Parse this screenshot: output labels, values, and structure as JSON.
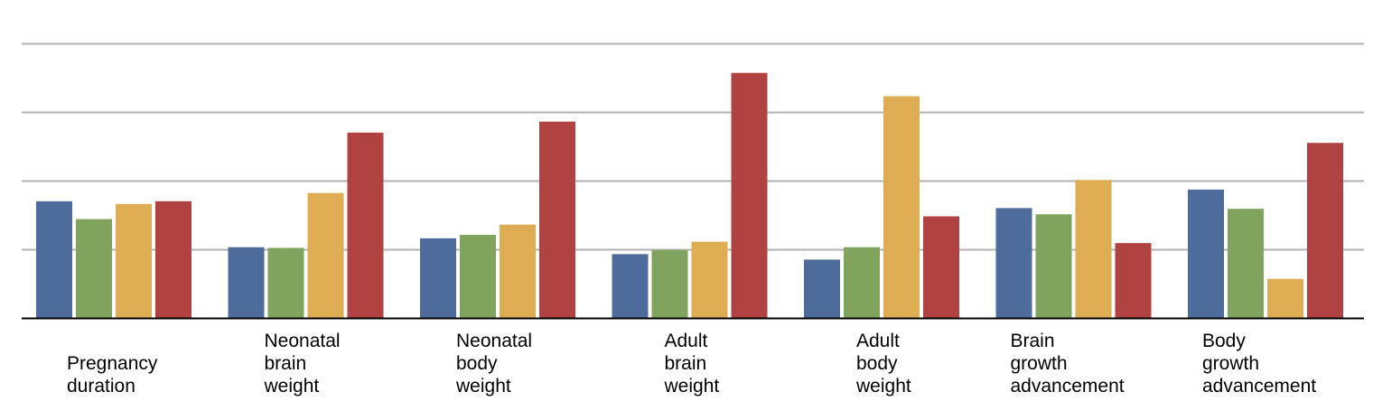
{
  "chart_data": {
    "type": "bar",
    "categories": [
      [
        "Pregnancy",
        "duration"
      ],
      [
        "Neonatal",
        "brain",
        "weight"
      ],
      [
        "Neonatal",
        "body",
        "weight"
      ],
      [
        "Adult",
        "brain",
        "weight"
      ],
      [
        "Adult",
        "body",
        "weight"
      ],
      [
        "Brain",
        "growth",
        "advancement"
      ],
      [
        "Body",
        "growth",
        "advancement"
      ]
    ],
    "series": [
      {
        "color": "#4d6c9c",
        "values": [
          1.7,
          1.03,
          1.16,
          0.93,
          0.85,
          1.6,
          1.87
        ]
      },
      {
        "color": "#80a45e",
        "values": [
          1.44,
          1.02,
          1.21,
          0.99,
          1.03,
          1.51,
          1.59
        ]
      },
      {
        "color": "#deac53",
        "values": [
          1.66,
          1.82,
          1.36,
          1.11,
          3.23,
          2.01,
          0.57
        ]
      },
      {
        "color": "#b04341",
        "values": [
          1.7,
          2.7,
          2.86,
          3.57,
          1.48,
          1.09,
          2.55
        ]
      }
    ],
    "ylim": [
      0,
      4
    ],
    "gridlines": [
      1,
      2,
      3,
      4
    ],
    "grid": true,
    "legend": "none",
    "title": "",
    "xlabel": "",
    "ylabel": ""
  }
}
